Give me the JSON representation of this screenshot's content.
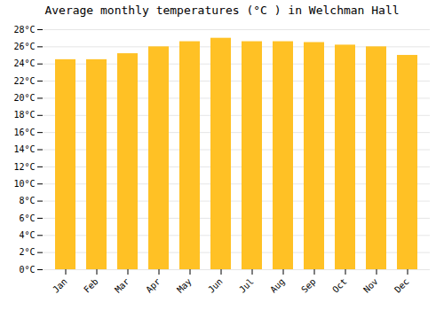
{
  "chart_data": {
    "type": "bar",
    "title": "Average monthly temperatures (°C ) in Welchman Hall",
    "categories": [
      "Jan",
      "Feb",
      "Mar",
      "Apr",
      "May",
      "Jun",
      "Jul",
      "Aug",
      "Sep",
      "Oct",
      "Nov",
      "Dec"
    ],
    "values": [
      24.5,
      24.5,
      25.2,
      26.0,
      26.6,
      27.0,
      26.6,
      26.6,
      26.5,
      26.2,
      26.0,
      25.0
    ],
    "color": "#FFC125",
    "ylim": [
      0,
      28
    ],
    "yticks": [
      {
        "value": 0,
        "label": "0°C"
      },
      {
        "value": 2,
        "label": "2°C"
      },
      {
        "value": 4,
        "label": "4°C"
      },
      {
        "value": 6,
        "label": "6°C"
      },
      {
        "value": 8,
        "label": "8°C"
      },
      {
        "value": 10,
        "label": "10°C"
      },
      {
        "value": 12,
        "label": "12°C"
      },
      {
        "value": 14,
        "label": "14°C"
      },
      {
        "value": 16,
        "label": "16°C"
      },
      {
        "value": 18,
        "label": "18°C"
      },
      {
        "value": 20,
        "label": "20°C"
      },
      {
        "value": 22,
        "label": "22°C"
      },
      {
        "value": 24,
        "label": "24°C"
      },
      {
        "value": 26,
        "label": "26°C"
      },
      {
        "value": 28,
        "label": "28°C"
      }
    ],
    "grid": true
  }
}
